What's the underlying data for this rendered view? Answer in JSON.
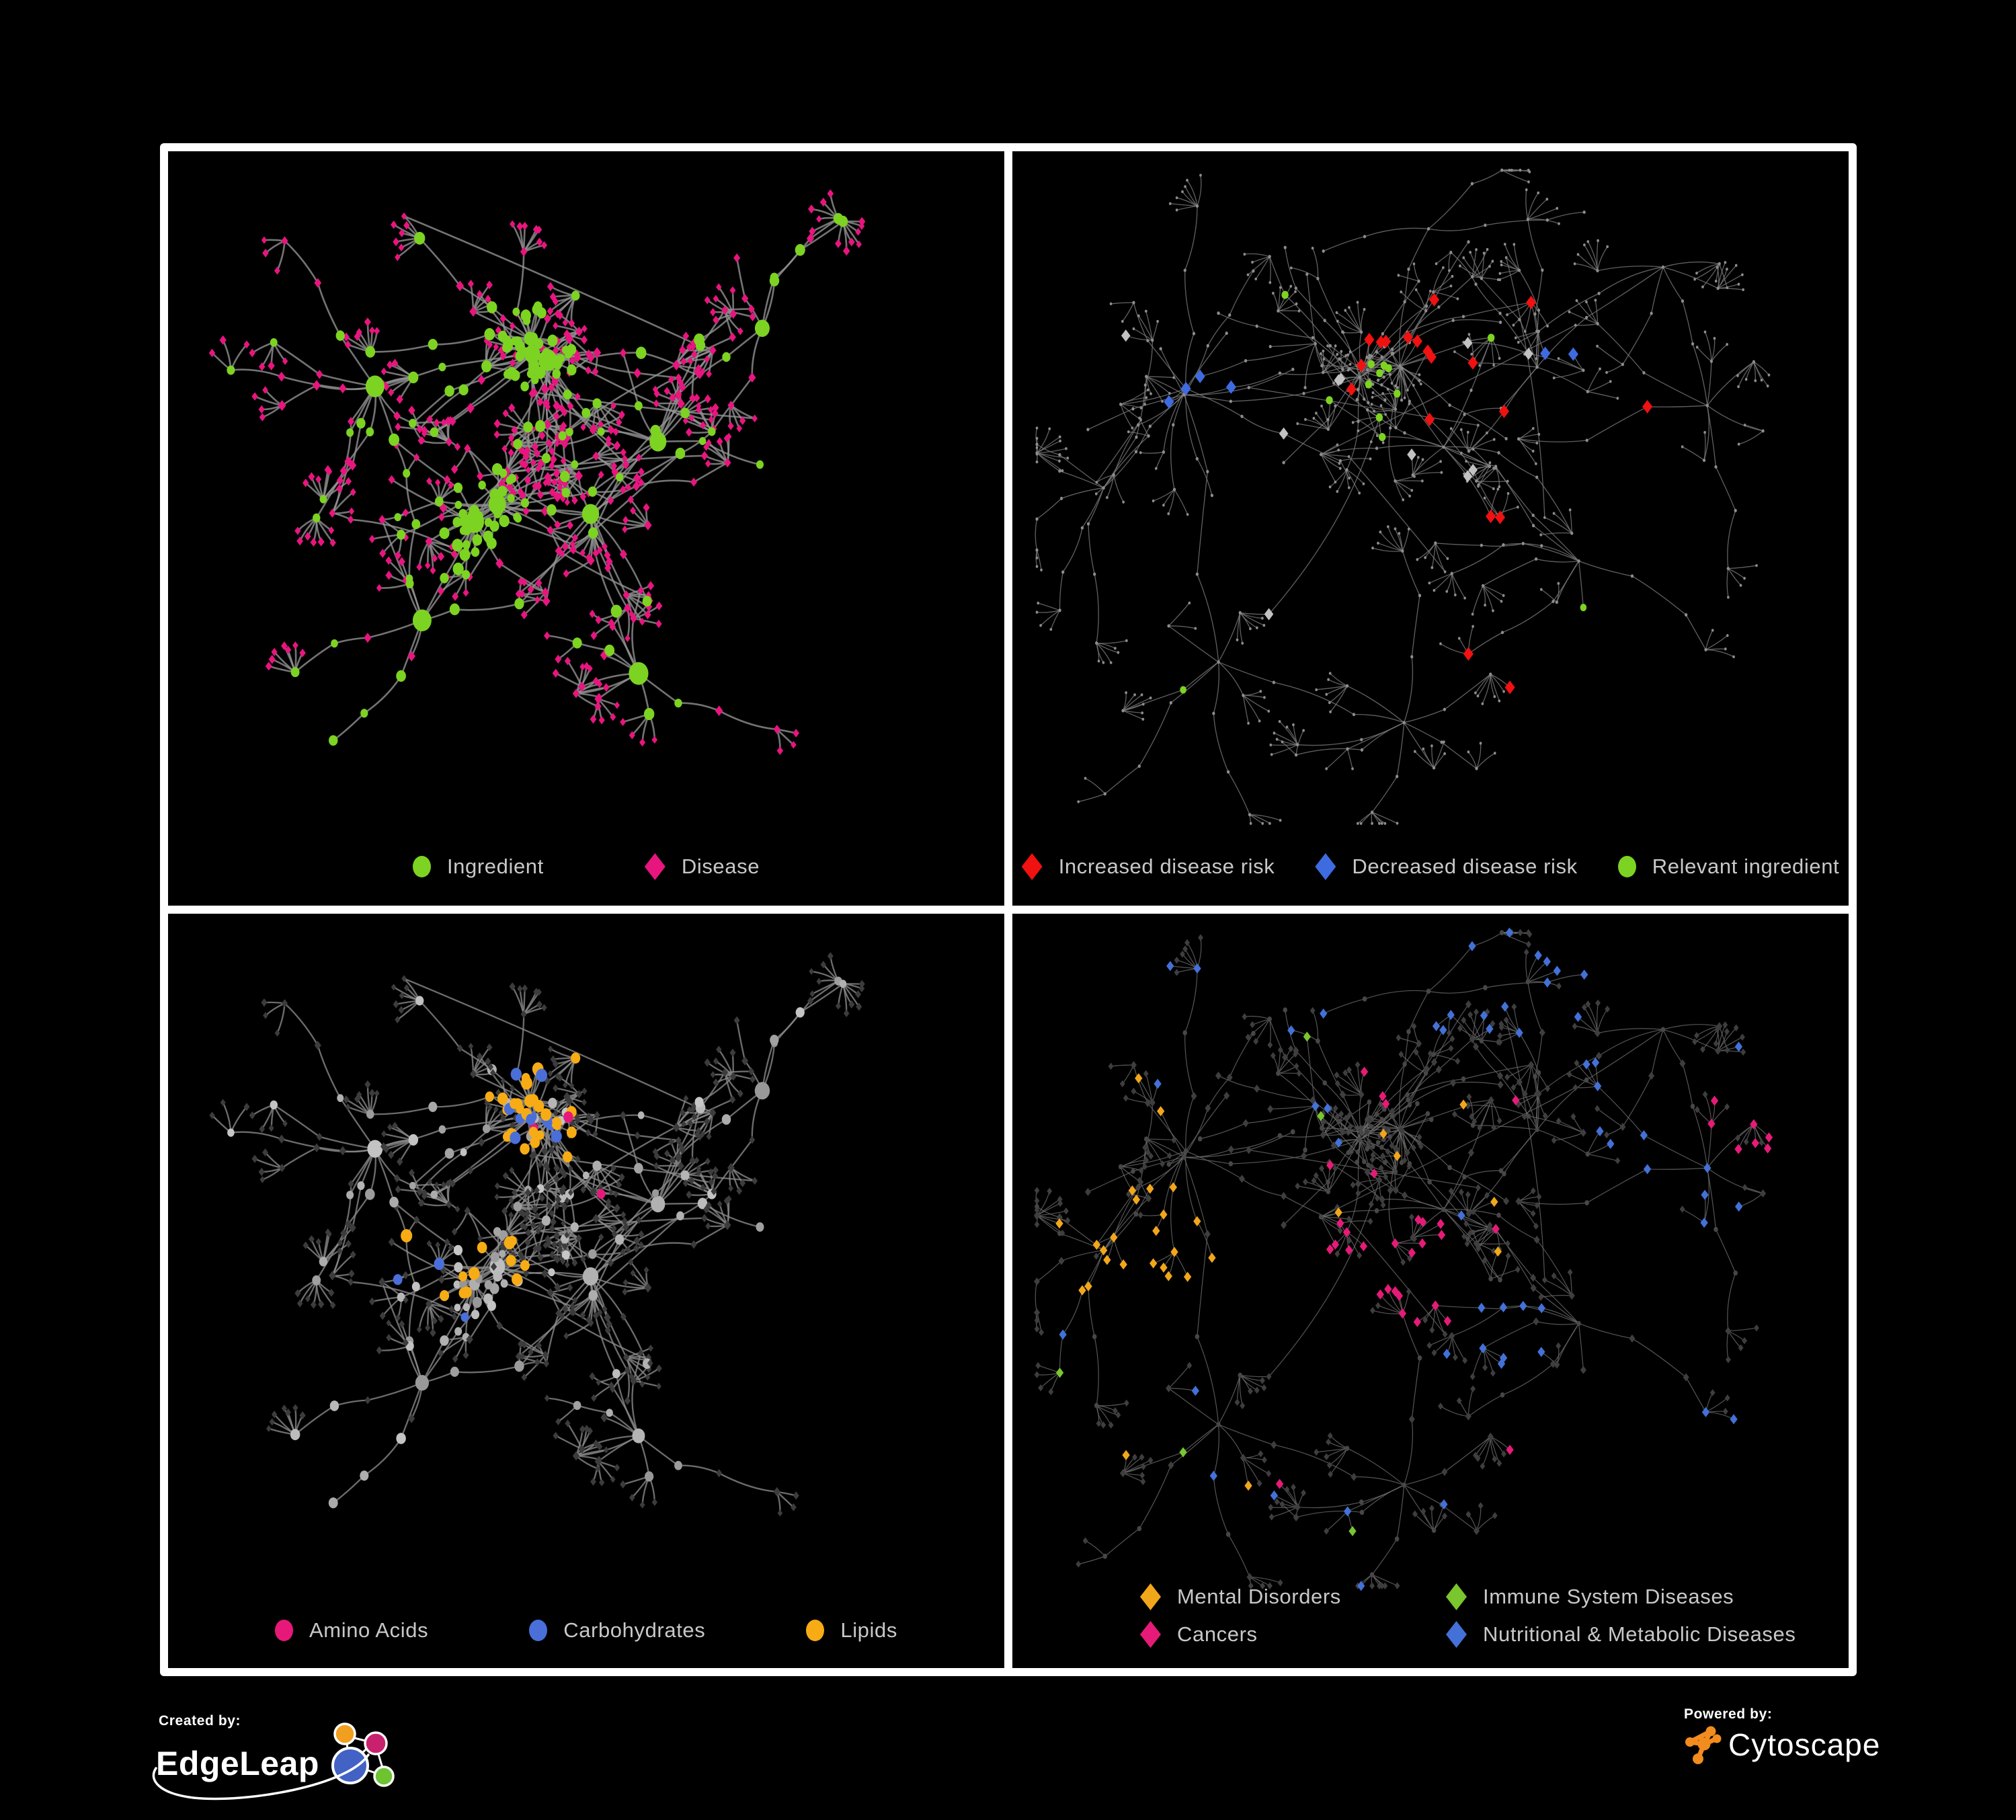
{
  "page": {
    "background": "#000000",
    "frame_border": "#ffffff"
  },
  "panels": [
    {
      "id": "ingredient-disease",
      "legend": [
        {
          "label": "Ingredient",
          "shape": "circle",
          "color": "#7DD321"
        },
        {
          "label": "Disease",
          "shape": "diamond",
          "color": "#E8157F"
        }
      ]
    },
    {
      "id": "disease-risk",
      "legend": [
        {
          "label": "Increased disease risk",
          "shape": "diamond",
          "color": "#F01111"
        },
        {
          "label": "Decreased disease risk",
          "shape": "diamond",
          "color": "#3E6BE0"
        },
        {
          "label": "Relevant ingredient",
          "shape": "circle",
          "color": "#7DD321"
        }
      ]
    },
    {
      "id": "nutrient-classes",
      "legend": [
        {
          "label": "Amino Acids",
          "shape": "circle",
          "color": "#E8187A"
        },
        {
          "label": "Carbohydrates",
          "shape": "circle",
          "color": "#4A6FD9"
        },
        {
          "label": "Lipids",
          "shape": "circle",
          "color": "#F7AC15"
        }
      ]
    },
    {
      "id": "disease-classes",
      "legend": [
        {
          "label": "Mental Disorders",
          "shape": "diamond",
          "color": "#F2A71B"
        },
        {
          "label": "Immune System Diseases",
          "shape": "diamond",
          "color": "#79C62E"
        },
        {
          "label": "Cancers",
          "shape": "diamond",
          "color": "#E61B78"
        },
        {
          "label": "Nutritional & Metabolic Diseases",
          "shape": "diamond",
          "color": "#4371D8"
        }
      ]
    }
  ],
  "network_style": {
    "panel1": {
      "edge": "#949494",
      "ingredient": "#7DD321",
      "disease": "#E8157F"
    },
    "panel2": {
      "edge": "#7a7a7a",
      "base": "#8d8d8d",
      "increased": "#F01111",
      "decreased": "#3E6BE0",
      "relevant": "#7DD321",
      "neutral": "#C2C2C2"
    },
    "panel3": {
      "edge": "#8a8a8a",
      "disease_base": "#3c3c3c",
      "ingredient_base": "#a8a8a8",
      "amino_acids": "#E8187A",
      "carbohydrates": "#4A6FD9",
      "lipids": "#F7AC15"
    },
    "panel4": {
      "edge": "#6b6b6b",
      "base": "#3e3e3e",
      "mental": "#F2A71B",
      "immune": "#79C62E",
      "cancers": "#E61B78",
      "nutritional": "#4371D8"
    }
  },
  "branding": {
    "created_by_label": "Created by:",
    "creator": "EdgeLeap",
    "powered_by_label": "Powered by:",
    "vendor": "Cytoscape",
    "edgeleap_colors": {
      "orange": "#F0A01E",
      "pink": "#C9216E",
      "blue": "#4362C6",
      "green": "#6EC331"
    },
    "cytoscape_orange": "#F28C1E"
  }
}
